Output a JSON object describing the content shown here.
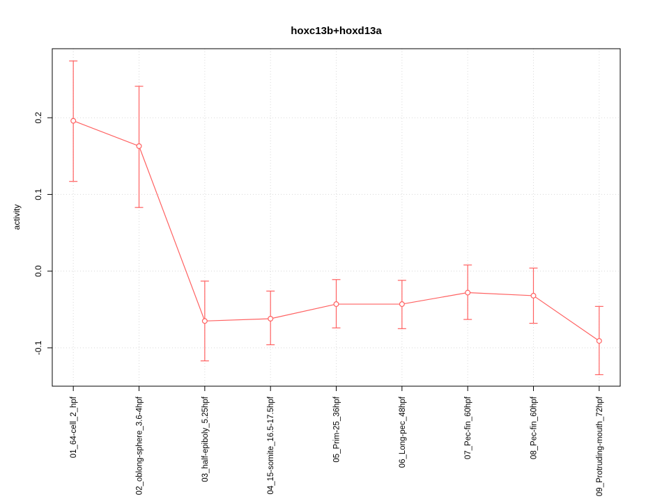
{
  "chart_data": {
    "type": "line",
    "title": "hoxc13b+hoxd13a",
    "xlabel": "",
    "ylabel": "activity",
    "categories": [
      "01_64-cell_2_hpf",
      "02_oblong-sphere_3.6-4hpf",
      "03_half-epiboly_5.25hpf",
      "04_15-somite_16.5-17.5hpf",
      "05_Prim-25_36hpf",
      "06_Long-pec_48hpf",
      "07_Pec-fin_60hpf",
      "08_Pec-fin_60hpf",
      "09_Protruding-mouth_72hpf"
    ],
    "values": [
      0.196,
      0.163,
      -0.065,
      -0.062,
      -0.043,
      -0.043,
      -0.028,
      -0.032,
      -0.091
    ],
    "error_low": [
      0.117,
      0.083,
      -0.117,
      -0.096,
      -0.074,
      -0.075,
      -0.063,
      -0.068,
      -0.135
    ],
    "error_high": [
      0.274,
      0.241,
      -0.013,
      -0.026,
      -0.011,
      -0.012,
      0.008,
      0.004,
      -0.046
    ],
    "yticks": [
      -0.1,
      0.0,
      0.1,
      0.2
    ],
    "ylim": [
      -0.15,
      0.29
    ],
    "grid": true,
    "legend_position": "none",
    "line_color": "#ff6060",
    "grid_color": "#d8d8d8",
    "box_color": "#000000"
  }
}
